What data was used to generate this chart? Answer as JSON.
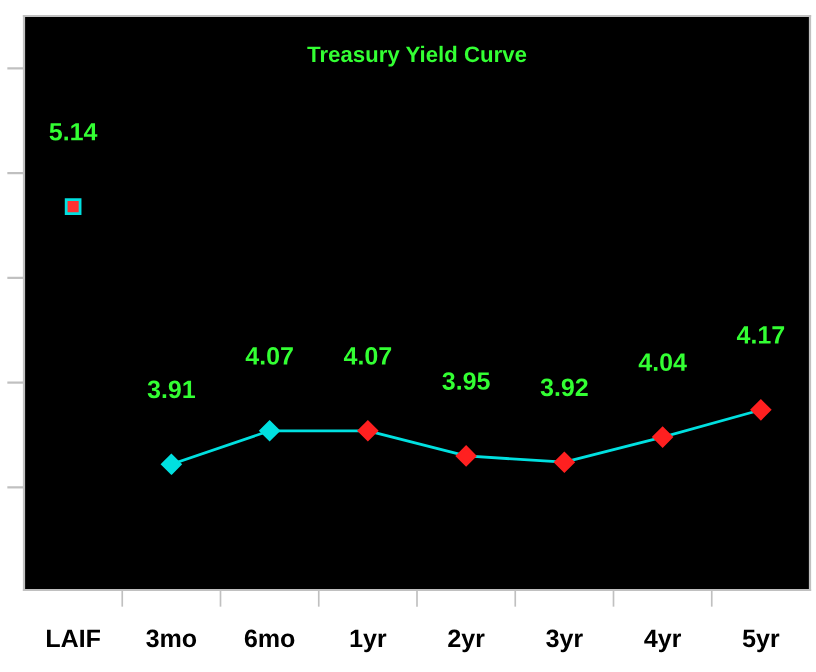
{
  "chart_data": {
    "type": "line",
    "title": "Treasury Yield Curve",
    "categories": [
      "LAIF",
      "3mo",
      "6mo",
      "1yr",
      "2yr",
      "3yr",
      "4yr",
      "5yr"
    ],
    "series": [
      {
        "type": "scatter",
        "marker": "square",
        "color": "#ff3030",
        "values": [
          5.14,
          null,
          null,
          null,
          null,
          null,
          null,
          null
        ]
      },
      {
        "marker": "diamond",
        "color": "#00e0e0",
        "colors": [
          null,
          "#00e0e0",
          "#00e0e0",
          "#ff2020",
          "#ff2020",
          "#ff2020",
          "#ff2020",
          "#ff2020"
        ],
        "values": [
          null,
          3.91,
          4.07,
          4.07,
          3.95,
          3.92,
          4.04,
          4.17
        ]
      }
    ],
    "ylim": [
      3.31,
      6.05
    ],
    "yticks": [
      {
        "value": 3.8,
        "label": null
      },
      {
        "value": 4.3,
        "label": null
      },
      {
        "value": 4.8,
        "label": null
      },
      {
        "value": 5.3,
        "label": null
      },
      {
        "value": 5.8,
        "label": null
      }
    ],
    "tick_labels": "x",
    "data_labels": true
  }
}
